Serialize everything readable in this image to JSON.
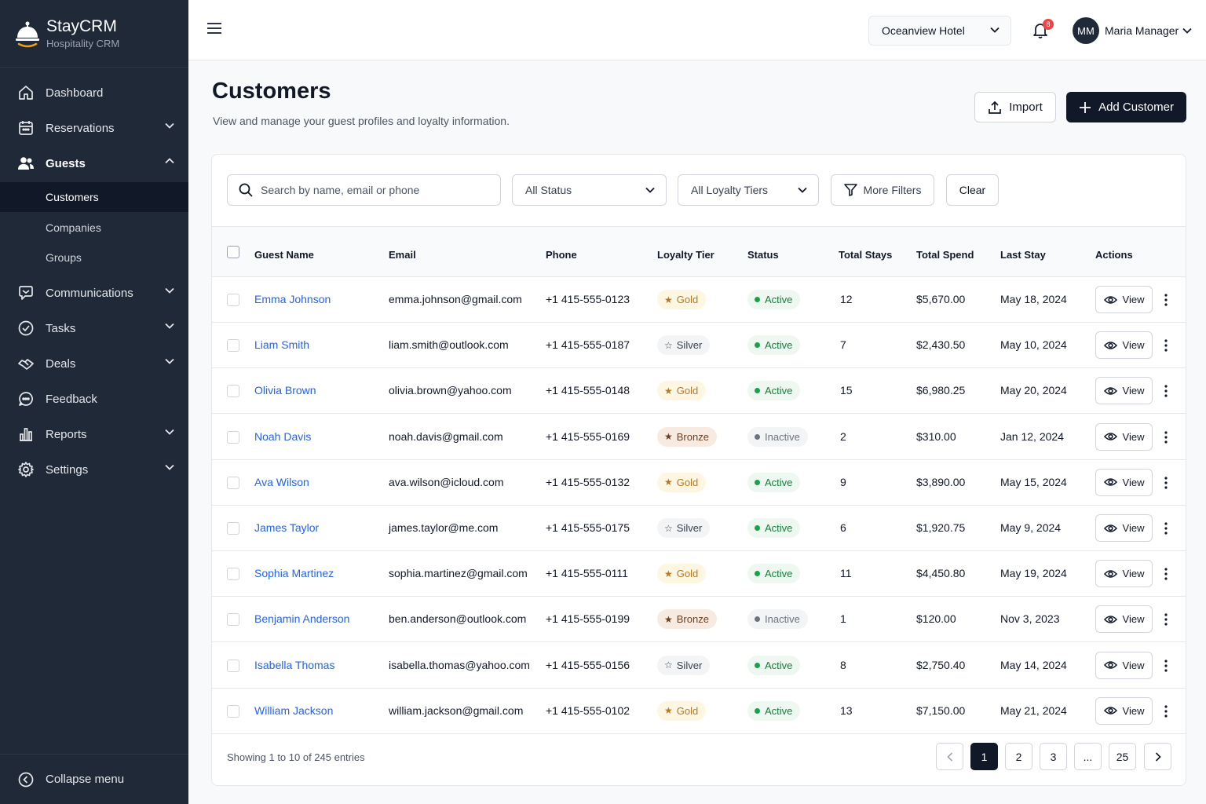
{
  "brand": {
    "name": "StayCRM",
    "subtitle": "Hospitality CRM"
  },
  "sidebar": {
    "items": [
      {
        "label": "Dashboard",
        "icon": "home-icon"
      },
      {
        "label": "Reservations",
        "icon": "calendar-icon"
      },
      {
        "label": "Guests",
        "icon": "users-icon"
      },
      {
        "label": "Communications",
        "icon": "chat-icon"
      },
      {
        "label": "Tasks",
        "icon": "check-circle-icon"
      },
      {
        "label": "Deals",
        "icon": "handshake-icon"
      },
      {
        "label": "Feedback",
        "icon": "feedback-icon"
      },
      {
        "label": "Reports",
        "icon": "bar-chart-icon"
      },
      {
        "label": "Settings",
        "icon": "gear-icon"
      }
    ],
    "sub_items": [
      {
        "label": "Customers",
        "active": true
      },
      {
        "label": "Companies",
        "active": false
      },
      {
        "label": "Groups",
        "active": false
      }
    ],
    "collapse_label": "Collapse menu"
  },
  "topbar": {
    "hotel": "Oceanview Hotel",
    "notification_count": "8",
    "user_initials": "MM",
    "user_name": "Maria Manager"
  },
  "page": {
    "title": "Customers",
    "subtitle": "View and manage your guest profiles and loyalty information.",
    "import_label": "Import",
    "add_label": "Add Customer"
  },
  "filters": {
    "search_placeholder": "Search by name, email or phone",
    "status": "All Status",
    "tier": "All Loyalty Tiers",
    "more_label": "More Filters",
    "clear_label": "Clear"
  },
  "table": {
    "columns": [
      "Guest Name",
      "Email",
      "Phone",
      "Loyalty Tier",
      "Status",
      "Total Stays",
      "Total Spend",
      "Last Stay",
      "Actions"
    ],
    "view_label": "View",
    "rows": [
      {
        "name": "Emma Johnson",
        "email": "emma.johnson@gmail.com",
        "phone": "+1 415-555-0123",
        "tier": "Gold",
        "status": "Active",
        "stays": "12",
        "spend": "$5,670.00",
        "last": "May 18, 2024"
      },
      {
        "name": "Liam Smith",
        "email": "liam.smith@outlook.com",
        "phone": "+1 415-555-0187",
        "tier": "Silver",
        "status": "Active",
        "stays": "7",
        "spend": "$2,430.50",
        "last": "May 10, 2024"
      },
      {
        "name": "Olivia Brown",
        "email": "olivia.brown@yahoo.com",
        "phone": "+1 415-555-0148",
        "tier": "Gold",
        "status": "Active",
        "stays": "15",
        "spend": "$6,980.25",
        "last": "May 20, 2024"
      },
      {
        "name": "Noah Davis",
        "email": "noah.davis@gmail.com",
        "phone": "+1 415-555-0169",
        "tier": "Bronze",
        "status": "Inactive",
        "stays": "2",
        "spend": "$310.00",
        "last": "Jan 12, 2024"
      },
      {
        "name": "Ava Wilson",
        "email": "ava.wilson@icloud.com",
        "phone": "+1 415-555-0132",
        "tier": "Gold",
        "status": "Active",
        "stays": "9",
        "spend": "$3,890.00",
        "last": "May 15, 2024"
      },
      {
        "name": "James Taylor",
        "email": "james.taylor@me.com",
        "phone": "+1 415-555-0175",
        "tier": "Silver",
        "status": "Active",
        "stays": "6",
        "spend": "$1,920.75",
        "last": "May 9, 2024"
      },
      {
        "name": "Sophia Martinez",
        "email": "sophia.martinez@gmail.com",
        "phone": "+1 415-555-0111",
        "tier": "Gold",
        "status": "Active",
        "stays": "11",
        "spend": "$4,450.80",
        "last": "May 19, 2024"
      },
      {
        "name": "Benjamin Anderson",
        "email": "ben.anderson@outlook.com",
        "phone": "+1 415-555-0199",
        "tier": "Bronze",
        "status": "Inactive",
        "stays": "1",
        "spend": "$120.00",
        "last": "Nov 3, 2023"
      },
      {
        "name": "Isabella Thomas",
        "email": "isabella.thomas@yahoo.com",
        "phone": "+1 415-555-0156",
        "tier": "Silver",
        "status": "Active",
        "stays": "8",
        "spend": "$2,750.40",
        "last": "May 14, 2024"
      },
      {
        "name": "William Jackson",
        "email": "william.jackson@gmail.com",
        "phone": "+1 415-555-0102",
        "tier": "Gold",
        "status": "Active",
        "stays": "13",
        "spend": "$7,150.00",
        "last": "May 21, 2024"
      }
    ]
  },
  "pagination": {
    "summary": "Showing 1 to 10 of 245 entries",
    "pages": [
      "1",
      "2",
      "3",
      "...",
      "25"
    ],
    "current": "1"
  },
  "colors": {
    "sidebar": "#1f2937",
    "primary": "#111827",
    "link": "#2563eb",
    "active": "#16a34a",
    "gold": "#d69e2e"
  }
}
